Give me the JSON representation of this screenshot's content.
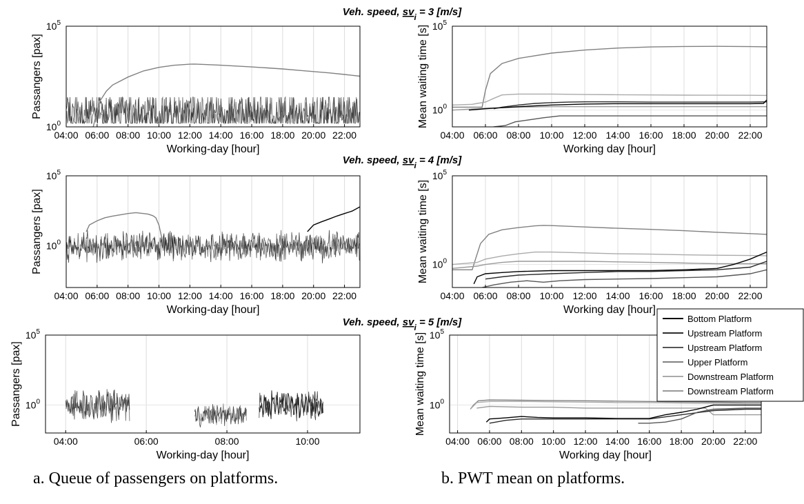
{
  "figure": {
    "row_titles": [
      {
        "prefix": "Veh. speed, ",
        "sv": "sv",
        "sub": "i",
        "suffix": " = 3 [m/s]"
      },
      {
        "prefix": "Veh. speed, ",
        "sv": "sv",
        "sub": "i",
        "suffix": " = 4 [m/s]"
      },
      {
        "prefix": "Veh. speed, ",
        "sv": "sv",
        "sub": "i",
        "suffix": " = 5 [m/s]"
      }
    ],
    "captions": {
      "left": "a. Queue of passengers on platforms.",
      "right": "b. PWT mean on platforms."
    },
    "legend": [
      {
        "label": "Bottom Platform",
        "color": "#000000"
      },
      {
        "label": "Upstream Platform",
        "color": "#2b2b2b"
      },
      {
        "label": "Upstream Platform",
        "color": "#555555"
      },
      {
        "label": "Upper Platform",
        "color": "#808080"
      },
      {
        "label": "Downstream Platform",
        "color": "#aaaaaa"
      },
      {
        "label": "Downstream Platform",
        "color": "#999999"
      }
    ]
  },
  "chart_data": [
    {
      "type": "line",
      "row": 0,
      "col": 0,
      "xlabel": "Working-day [hour]",
      "ylabel": "Passangers [pax]",
      "yscale": "log",
      "xticks": [
        "04:00",
        "06:00",
        "08:00",
        "10:00",
        "12:00",
        "14:00",
        "16:00",
        "18:00",
        "20:00",
        "22:00"
      ],
      "xlim": [
        4,
        23
      ],
      "ylim": [
        1,
        100000
      ],
      "yticks": [
        {
          "base": "10",
          "exp": "0",
          "value": 1
        },
        {
          "base": "10",
          "exp": "5",
          "value": 100000
        }
      ],
      "grid": "x",
      "series": [
        {
          "color": "#808080",
          "x": [
            5.75,
            5.9,
            6.2,
            6.6,
            7,
            8,
            9,
            10,
            11,
            12,
            12.3,
            13,
            14,
            15,
            16,
            17,
            18,
            19,
            20,
            21,
            22,
            23
          ],
          "y": [
            1,
            3,
            20,
            60,
            120,
            300,
            600,
            900,
            1150,
            1300,
            1320,
            1250,
            1150,
            1050,
            950,
            850,
            750,
            650,
            560,
            480,
            400,
            330
          ]
        }
      ],
      "noise": {
        "x_range": [
          4,
          23
        ],
        "y_center": 3,
        "y_max": 30,
        "seed": 11
      }
    },
    {
      "type": "line",
      "row": 0,
      "col": 1,
      "xlabel": "Working day [hour]",
      "ylabel": "Mean waiting time [s]",
      "yscale": "log",
      "xticks": [
        "04:00",
        "06:00",
        "08:00",
        "10:00",
        "12:00",
        "14:00",
        "16:00",
        "18:00",
        "20:00",
        "22:00"
      ],
      "xlim": [
        4,
        23
      ],
      "ylim": [
        0.1,
        100000
      ],
      "yticks": [
        {
          "base": "10",
          "exp": "0",
          "value": 1
        },
        {
          "base": "10",
          "exp": "5",
          "value": 100000
        }
      ],
      "grid": "x",
      "series": [
        {
          "color": "#808080",
          "x": [
            4,
            5.8,
            6,
            6.3,
            7,
            8,
            10,
            12,
            14,
            16,
            18,
            20,
            22,
            23
          ],
          "y": [
            1.5,
            1.5,
            15,
            150,
            600,
            1200,
            2500,
            3800,
            5000,
            5800,
            6200,
            6300,
            6100,
            5900
          ]
        },
        {
          "color": "#aaaaaa",
          "x": [
            4,
            5.2,
            5.5,
            6,
            6.5,
            7,
            8,
            10,
            12,
            14,
            16,
            18,
            20,
            22,
            23
          ],
          "y": [
            2,
            2.2,
            2.5,
            3,
            5,
            8,
            9,
            9,
            8.5,
            8.2,
            8,
            7.8,
            7.7,
            7.6,
            7.5
          ]
        },
        {
          "color": "#2b2b2b",
          "x": [
            6.5,
            7,
            8,
            9,
            10,
            11,
            12,
            14,
            16,
            18,
            20,
            22,
            23
          ],
          "y": [
            1.2,
            1.5,
            2,
            2.5,
            2.8,
            3,
            3.1,
            3.1,
            3,
            3,
            3,
            3,
            3.1
          ]
        },
        {
          "color": "#999999",
          "x": [
            4,
            6,
            8,
            10,
            12,
            14,
            16,
            18,
            20,
            22,
            23
          ],
          "y": [
            1,
            1.3,
            1.5,
            1.6,
            1.6,
            1.6,
            1.6,
            1.6,
            1.6,
            1.6,
            1.6
          ]
        },
        {
          "color": "#555555",
          "x": [
            6.5,
            7.2,
            7.8,
            8.5,
            9.5,
            10.5,
            12,
            14,
            16,
            18,
            20,
            22,
            23
          ],
          "y": [
            0.1,
            0.12,
            0.2,
            0.25,
            0.35,
            0.45,
            0.45,
            0.45,
            0.45,
            0.45,
            0.45,
            0.45,
            0.45
          ]
        },
        {
          "color": "#000000",
          "x": [
            5,
            6,
            8,
            10,
            12,
            14,
            16,
            18,
            20,
            22,
            22.8,
            23
          ],
          "y": [
            1,
            1.2,
            1.6,
            2,
            2.3,
            2.4,
            2.4,
            2.4,
            2.4,
            2.4,
            2.5,
            4
          ]
        }
      ]
    },
    {
      "type": "line",
      "row": 1,
      "col": 0,
      "xlabel": "Working-day [hour]",
      "ylabel": "Passangers [pax]",
      "yscale": "log",
      "xticks": [
        "04:00",
        "06:00",
        "08:00",
        "10:00",
        "12:00",
        "14:00",
        "16:00",
        "18:00",
        "20:00",
        "22:00"
      ],
      "xlim": [
        4,
        23
      ],
      "ylim": [
        0.001,
        100000
      ],
      "yticks": [
        {
          "base": "10",
          "exp": "0",
          "value": 1
        },
        {
          "base": "10",
          "exp": "5",
          "value": 100000
        }
      ],
      "grid": "x",
      "series": [
        {
          "color": "#808080",
          "x": [
            5.3,
            5.5,
            6,
            6.5,
            7,
            7.5,
            8,
            8.5,
            9,
            9.3,
            9.6,
            9.8,
            10,
            10.2
          ],
          "y": [
            10,
            30,
            60,
            100,
            130,
            160,
            200,
            230,
            200,
            180,
            140,
            100,
            30,
            3
          ]
        },
        {
          "color": "#000000",
          "x": [
            19.6,
            20,
            20.5,
            21,
            21.5,
            22,
            22.5,
            23
          ],
          "y": [
            10,
            30,
            50,
            80,
            130,
            200,
            300,
            600
          ]
        }
      ],
      "noise": {
        "x_range": [
          4,
          23
        ],
        "y_center": 1,
        "y_max": 15,
        "seed": 23
      }
    },
    {
      "type": "line",
      "row": 1,
      "col": 1,
      "xlabel": "Working day [hour]",
      "ylabel": "Mean waiting time [s]",
      "yscale": "log",
      "xticks": [
        "04:00",
        "06:00",
        "08:00",
        "10:00",
        "12:00",
        "14:00",
        "16:00",
        "18:00",
        "20:00",
        "22:00"
      ],
      "xlim": [
        4,
        23
      ],
      "ylim": [
        0.05,
        100000
      ],
      "yticks": [
        {
          "base": "10",
          "exp": "0",
          "value": 1
        },
        {
          "base": "10",
          "exp": "5",
          "value": 100000
        }
      ],
      "grid": "x",
      "series": [
        {
          "color": "#808080",
          "x": [
            4,
            5.2,
            5.4,
            5.7,
            6.2,
            7,
            8,
            9,
            9.5,
            10,
            12,
            14,
            16,
            18,
            20,
            22,
            23
          ],
          "y": [
            0.5,
            0.5,
            2,
            15,
            50,
            90,
            120,
            150,
            160,
            155,
            130,
            110,
            95,
            80,
            65,
            55,
            50
          ]
        },
        {
          "color": "#aaaaaa",
          "x": [
            4,
            5.5,
            6,
            7,
            8,
            9,
            10,
            12,
            14,
            16,
            18,
            20,
            22,
            23
          ],
          "y": [
            1,
            1.3,
            2,
            3,
            4,
            5,
            5,
            4.5,
            4,
            3.8,
            3.5,
            3.3,
            3.2,
            3.1
          ]
        },
        {
          "color": "#999999",
          "x": [
            4,
            5.5,
            6,
            7,
            8,
            10,
            12,
            14,
            16,
            18,
            20,
            22,
            23
          ],
          "y": [
            0.6,
            0.8,
            1,
            1.3,
            1.5,
            1.5,
            1.5,
            1.4,
            1.3,
            1.2,
            1.1,
            1.1,
            1.1
          ]
        },
        {
          "color": "#000000",
          "x": [
            5.3,
            5.5,
            6,
            7,
            8,
            10,
            12,
            14,
            16,
            18,
            20,
            21,
            22,
            23
          ],
          "y": [
            0.08,
            0.2,
            0.3,
            0.35,
            0.4,
            0.45,
            0.45,
            0.45,
            0.45,
            0.5,
            0.6,
            1,
            2,
            5
          ]
        },
        {
          "color": "#2b2b2b",
          "x": [
            6,
            7,
            8,
            10,
            12,
            14,
            16,
            18,
            20,
            22,
            23
          ],
          "y": [
            0.15,
            0.2,
            0.25,
            0.3,
            0.35,
            0.4,
            0.4,
            0.45,
            0.5,
            0.7,
            1.5
          ]
        },
        {
          "color": "#555555",
          "x": [
            5.8,
            6.5,
            7.5,
            8.5,
            9.5,
            10.5,
            12,
            14,
            16,
            18,
            20,
            22,
            23
          ],
          "y": [
            0.05,
            0.07,
            0.1,
            0.12,
            0.1,
            0.12,
            0.14,
            0.15,
            0.16,
            0.18,
            0.2,
            0.3,
            0.5
          ]
        }
      ]
    },
    {
      "type": "line",
      "row": 2,
      "col": 0,
      "xlabel": "Working-day [hour]",
      "ylabel": "Passangers [pax]",
      "yscale": "log",
      "xticks": [
        "04:00",
        "06:00",
        "08:00",
        "10:00"
      ],
      "xlim": [
        3.5,
        11.3
      ],
      "ylim": [
        0.01,
        100000
      ],
      "yticks": [
        {
          "base": "10",
          "exp": "0",
          "value": 1
        },
        {
          "base": "10",
          "exp": "5",
          "value": 100000
        }
      ],
      "grid": "x",
      "series": [],
      "noise_segments": [
        {
          "x_range": [
            4,
            5.6
          ],
          "y_center": 1,
          "y_max": 20,
          "seed": 31
        },
        {
          "x_range": [
            7.2,
            8.5
          ],
          "y_center": 0.5,
          "y_max": 3,
          "seed": 37
        },
        {
          "x_range": [
            8.8,
            10.4
          ],
          "y_center": 1,
          "y_max": 20,
          "seed": 41
        }
      ]
    },
    {
      "type": "line",
      "row": 2,
      "col": 1,
      "xlabel": "Working day [hour]",
      "ylabel": "Mean waiting time [s]",
      "yscale": "log",
      "xticks": [
        "04:00",
        "06:00",
        "08:00",
        "10:00",
        "12:00",
        "14:00",
        "16:00",
        "18:00",
        "20:00",
        "22:00"
      ],
      "xlim": [
        3.5,
        23
      ],
      "ylim": [
        0.01,
        100000
      ],
      "yticks": [
        {
          "base": "10",
          "exp": "0",
          "value": 1
        },
        {
          "base": "10",
          "exp": "5",
          "value": 100000
        }
      ],
      "grid": "x",
      "series": [
        {
          "color": "#808080",
          "x": [
            4.8,
            5,
            5.3,
            6,
            8,
            10,
            12,
            14,
            16,
            18,
            20,
            22,
            23
          ],
          "y": [
            0.5,
            1,
            2,
            2.3,
            2.2,
            2.1,
            2,
            1.9,
            1.8,
            1.7,
            1.6,
            1.5,
            1.5
          ]
        },
        {
          "color": "#aaaaaa",
          "x": [
            4.8,
            5.2,
            6,
            8,
            10,
            12,
            14,
            16,
            18,
            20,
            22,
            23
          ],
          "y": [
            0.5,
            1.5,
            1.8,
            1.8,
            1.7,
            1.6,
            1.5,
            1.5,
            1.4,
            1.3,
            1.3,
            1.3
          ]
        },
        {
          "color": "#999999",
          "x": [
            5.2,
            6,
            8,
            10,
            12,
            14,
            16,
            18,
            19.5,
            20,
            22,
            23
          ],
          "y": [
            0.6,
            0.8,
            0.7,
            0.7,
            0.6,
            0.6,
            0.6,
            0.6,
            0.6,
            0.2,
            0.2,
            0.2
          ]
        },
        {
          "color": "#000000",
          "x": [
            5.8,
            6,
            7,
            8,
            9,
            10,
            12,
            14,
            16,
            17,
            18,
            19,
            20,
            22,
            23
          ],
          "y": [
            0.06,
            0.1,
            0.12,
            0.15,
            0.13,
            0.12,
            0.12,
            0.11,
            0.11,
            0.2,
            0.3,
            0.5,
            1,
            1,
            1
          ]
        },
        {
          "color": "#2b2b2b",
          "x": [
            6,
            7,
            8,
            10,
            12,
            14,
            16,
            18,
            20,
            22,
            23
          ],
          "y": [
            0.05,
            0.08,
            0.1,
            0.1,
            0.1,
            0.1,
            0.1,
            0.2,
            0.4,
            0.5,
            0.5
          ]
        },
        {
          "color": "#555555",
          "x": [
            15.3,
            16,
            17,
            18,
            19,
            20,
            22,
            23
          ],
          "y": [
            0.05,
            0.05,
            0.06,
            0.1,
            0.3,
            0.5,
            0.6,
            0.6
          ]
        }
      ]
    }
  ]
}
